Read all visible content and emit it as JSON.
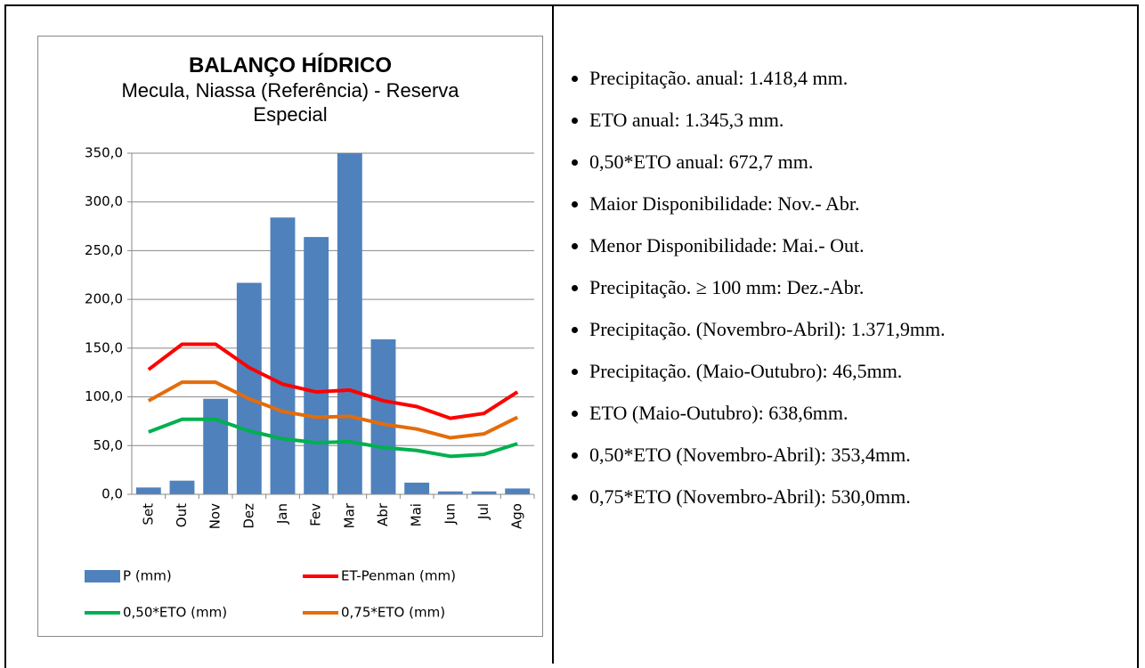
{
  "chart_data": {
    "type": "bar-line",
    "title": "BALANÇO HÍDRICO",
    "subtitle": "Mecula, Niassa (Referência) - Reserva Especial",
    "categories": [
      "Set",
      "Out",
      "Nov",
      "Dez",
      "Jan",
      "Fev",
      "Mar",
      "Abr",
      "Mai",
      "Jun",
      "Jul",
      "Ago"
    ],
    "series": [
      {
        "name": "P (mm)",
        "type": "bar",
        "color": "#4f81bd",
        "values": [
          7,
          14,
          98,
          217,
          284,
          264,
          350,
          159,
          12,
          3,
          3,
          6
        ]
      },
      {
        "name": "ET-Penman (mm)",
        "type": "line",
        "color": "#ff0000",
        "values": [
          128,
          154,
          154,
          130,
          113,
          105,
          107,
          96,
          90,
          78,
          83,
          105
        ]
      },
      {
        "name": "0,50*ETO (mm)",
        "type": "line",
        "color": "#00b050",
        "values": [
          64,
          77,
          77,
          65,
          57,
          53,
          54,
          48,
          45,
          39,
          41,
          52
        ]
      },
      {
        "name": "0,75*ETO (mm)",
        "type": "line",
        "color": "#e46c0a",
        "values": [
          96,
          115,
          115,
          98,
          85,
          79,
          80,
          72,
          67,
          58,
          62,
          79
        ]
      }
    ],
    "ylim": [
      0,
      350
    ],
    "yticks": [
      {
        "value": 0,
        "label": "0,0"
      },
      {
        "value": 50,
        "label": "50,0"
      },
      {
        "value": 100,
        "label": "100,0"
      },
      {
        "value": 150,
        "label": "150,0"
      },
      {
        "value": 200,
        "label": "200,0"
      },
      {
        "value": 250,
        "label": "250,0"
      },
      {
        "value": 300,
        "label": "300,0"
      },
      {
        "value": 350,
        "label": "350,0"
      }
    ],
    "grid": true
  },
  "notes": [
    "Precipitação. anual: 1.418,4 mm.",
    "ETO anual: 1.345,3 mm.",
    "0,50*ETO anual: 672,7 mm.",
    "Maior Disponibilidade: Nov.- Abr.",
    "Menor Disponibilidade: Mai.- Out.",
    "Precipitação. ≥ 100 mm: Dez.-Abr.",
    "Precipitação. (Novembro-Abril): 1.371,9mm.",
    "Precipitação. (Maio-Outubro): 46,5mm.",
    "ETO (Maio-Outubro): 638,6mm.",
    "0,50*ETO (Novembro-Abril): 353,4mm.",
    "0,75*ETO (Novembro-Abril): 530,0mm."
  ]
}
